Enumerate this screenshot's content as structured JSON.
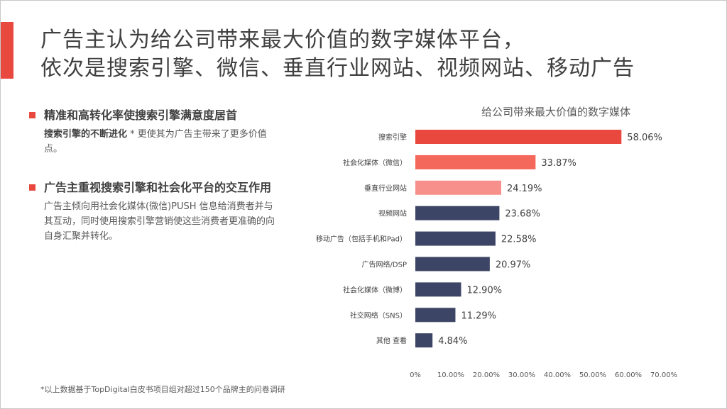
{
  "title": {
    "line1": "广告主认为给公司带来最大价值的数字媒体平台，",
    "line2": "依次是搜索引擎、微信、垂直行业网站、视频网站、移动广告"
  },
  "bullets": [
    {
      "heading": "精准和高转化率使搜索引擎满意度居首",
      "emphasis": "搜索引擎的不断进化",
      "text": " * 更使其为广告主带来了更多价值点。"
    },
    {
      "heading": "广告主重视搜索引擎和社会化平台的交互作用",
      "emphasis": "",
      "text": "广告主倾向用社会化媒体(微信)PUSH 信息给消费者并与其互动，同时使用搜索引擎营销使这些消费者更准确的向自身汇聚并转化。"
    }
  ],
  "footnote": "*以上数据基于TopDigital白皮书项目组对超过150个品牌主的问卷调研",
  "colors": {
    "accent": "#e9483f",
    "bar_red": "#e9483f",
    "bar_salmon": "#f4685b",
    "bar_pink": "#f7908a",
    "bar_navy": "#3c4565"
  },
  "chart_data": {
    "type": "bar",
    "orientation": "horizontal",
    "title": "给公司带来最大价值的数字媒体",
    "categories": [
      "搜索引擎",
      "社会化媒体（微信）",
      "垂直行业网站",
      "视频网站",
      "移动广告（包括手机和Pad）",
      "广告网络/DSP",
      "社会化媒体（微博）",
      "社交网络（SNS）",
      "其他 查看"
    ],
    "values": [
      58.06,
      33.87,
      24.19,
      23.68,
      22.58,
      20.97,
      12.9,
      11.29,
      4.84
    ],
    "value_labels": [
      "58.06%",
      "33.87%",
      "24.19%",
      "23.68%",
      "22.58%",
      "20.97%",
      "12.90%",
      "11.29%",
      "4.84%"
    ],
    "bar_colors": [
      "#e9483f",
      "#f4685b",
      "#f7908a",
      "#3c4565",
      "#3c4565",
      "#3c4565",
      "#3c4565",
      "#3c4565",
      "#3c4565"
    ],
    "xlim": [
      0,
      70
    ],
    "xticks": [
      0,
      10,
      20,
      30,
      40,
      50,
      60,
      70
    ],
    "xtick_labels": [
      "0%",
      "10.00%",
      "20.00%",
      "30.00%",
      "40.00%",
      "50.00%",
      "60.00%",
      "70.00%"
    ],
    "xlabel": "",
    "ylabel": "",
    "grid": false,
    "legend": "none"
  }
}
